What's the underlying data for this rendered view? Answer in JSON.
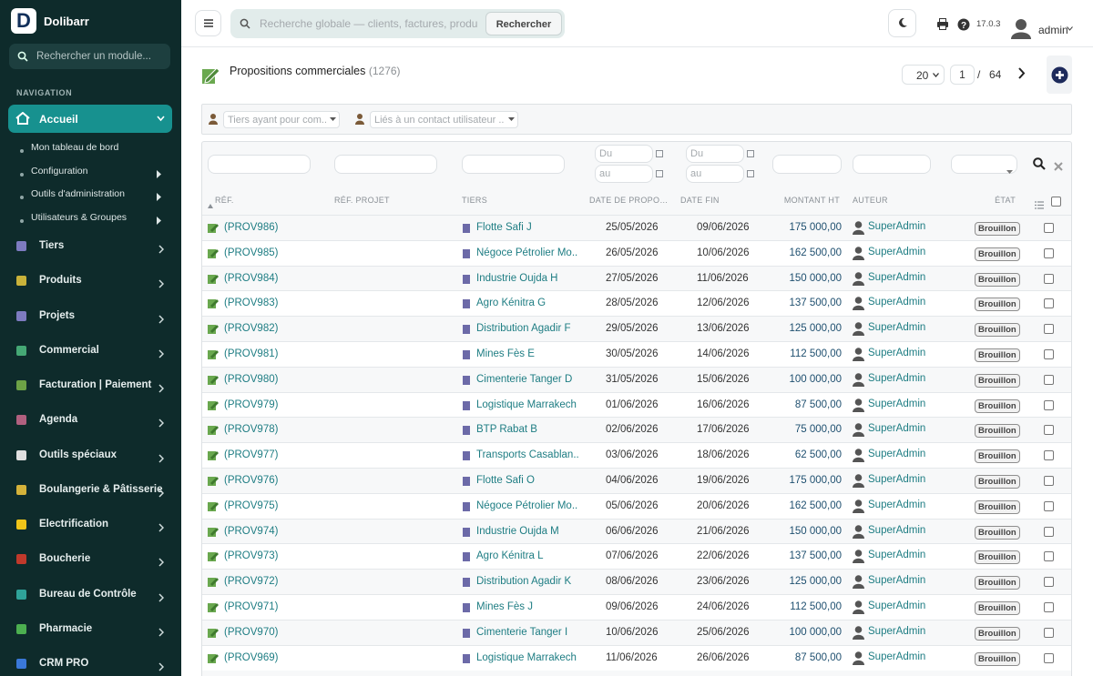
{
  "sidebar": {
    "brand": "Dolibarr",
    "search_placeholder": "Rechercher un module...",
    "section": "NAVIGATION",
    "active": "Accueil",
    "submenu": [
      "Mon tableau de bord",
      "Configuration",
      "Outils d'administration",
      "Utilisateurs & Groupes"
    ],
    "menu": [
      "Tiers",
      "Produits",
      "Projets",
      "Commercial",
      "Facturation | Paiement",
      "Agenda",
      "Outils spéciaux",
      "Boulangerie & Pâtisserie",
      "Electrification",
      "Boucherie",
      "Bureau de Contrôle",
      "Pharmacie",
      "CRM PRO"
    ]
  },
  "topbar": {
    "search_placeholder": "Recherche globale — clients, factures, produits...",
    "search_button": "Rechercher",
    "version": "17.0.3",
    "user": "admin"
  },
  "page": {
    "title": "Propositions commerciales",
    "count": "(1276)",
    "per_page": "20",
    "current_page": "1",
    "separator": "/",
    "pages": "64"
  },
  "filters": {
    "thirdparty_placeholder": "Tiers ayant pour com...",
    "contact_placeholder": "Liés à un contact utilisateur ...",
    "date_from": "Du",
    "date_to": "au"
  },
  "table": {
    "headers": [
      "RÉF.",
      "RÉF. PROJET",
      "TIERS",
      "DATE DE PROPOSI...",
      "DATE FIN",
      "MONTANT HT",
      "AUTEUR",
      "ÉTAT"
    ],
    "rows": [
      {
        "ref": "(PROV986)",
        "thirdparty": "Flotte Safi J",
        "date": "25/05/2026",
        "end_date": "09/06/2026",
        "amount": "175 000,00",
        "author": "SuperAdmin",
        "status": "Brouillon"
      },
      {
        "ref": "(PROV985)",
        "thirdparty": "Négoce Pétrolier Mo...",
        "date": "26/05/2026",
        "end_date": "10/06/2026",
        "amount": "162 500,00",
        "author": "SuperAdmin",
        "status": "Brouillon"
      },
      {
        "ref": "(PROV984)",
        "thirdparty": "Industrie Oujda H",
        "date": "27/05/2026",
        "end_date": "11/06/2026",
        "amount": "150 000,00",
        "author": "SuperAdmin",
        "status": "Brouillon"
      },
      {
        "ref": "(PROV983)",
        "thirdparty": "Agro Kénitra G",
        "date": "28/05/2026",
        "end_date": "12/06/2026",
        "amount": "137 500,00",
        "author": "SuperAdmin",
        "status": "Brouillon"
      },
      {
        "ref": "(PROV982)",
        "thirdparty": "Distribution Agadir F",
        "date": "29/05/2026",
        "end_date": "13/06/2026",
        "amount": "125 000,00",
        "author": "SuperAdmin",
        "status": "Brouillon"
      },
      {
        "ref": "(PROV981)",
        "thirdparty": "Mines Fès E",
        "date": "30/05/2026",
        "end_date": "14/06/2026",
        "amount": "112 500,00",
        "author": "SuperAdmin",
        "status": "Brouillon"
      },
      {
        "ref": "(PROV980)",
        "thirdparty": "Cimenterie Tanger D",
        "date": "31/05/2026",
        "end_date": "15/06/2026",
        "amount": "100 000,00",
        "author": "SuperAdmin",
        "status": "Brouillon"
      },
      {
        "ref": "(PROV979)",
        "thirdparty": "Logistique Marrakech C",
        "date": "01/06/2026",
        "end_date": "16/06/2026",
        "amount": "87 500,00",
        "author": "SuperAdmin",
        "status": "Brouillon"
      },
      {
        "ref": "(PROV978)",
        "thirdparty": "BTP Rabat B",
        "date": "02/06/2026",
        "end_date": "17/06/2026",
        "amount": "75 000,00",
        "author": "SuperAdmin",
        "status": "Brouillon"
      },
      {
        "ref": "(PROV977)",
        "thirdparty": "Transports Casablan...",
        "date": "03/06/2026",
        "end_date": "18/06/2026",
        "amount": "62 500,00",
        "author": "SuperAdmin",
        "status": "Brouillon"
      },
      {
        "ref": "(PROV976)",
        "thirdparty": "Flotte Safi O",
        "date": "04/06/2026",
        "end_date": "19/06/2026",
        "amount": "175 000,00",
        "author": "SuperAdmin",
        "status": "Brouillon"
      },
      {
        "ref": "(PROV975)",
        "thirdparty": "Négoce Pétrolier Mo...",
        "date": "05/06/2026",
        "end_date": "20/06/2026",
        "amount": "162 500,00",
        "author": "SuperAdmin",
        "status": "Brouillon"
      },
      {
        "ref": "(PROV974)",
        "thirdparty": "Industrie Oujda M",
        "date": "06/06/2026",
        "end_date": "21/06/2026",
        "amount": "150 000,00",
        "author": "SuperAdmin",
        "status": "Brouillon"
      },
      {
        "ref": "(PROV973)",
        "thirdparty": "Agro Kénitra L",
        "date": "07/06/2026",
        "end_date": "22/06/2026",
        "amount": "137 500,00",
        "author": "SuperAdmin",
        "status": "Brouillon"
      },
      {
        "ref": "(PROV972)",
        "thirdparty": "Distribution Agadir K",
        "date": "08/06/2026",
        "end_date": "23/06/2026",
        "amount": "125 000,00",
        "author": "SuperAdmin",
        "status": "Brouillon"
      },
      {
        "ref": "(PROV971)",
        "thirdparty": "Mines Fès J",
        "date": "09/06/2026",
        "end_date": "24/06/2026",
        "amount": "112 500,00",
        "author": "SuperAdmin",
        "status": "Brouillon"
      },
      {
        "ref": "(PROV970)",
        "thirdparty": "Cimenterie Tanger I",
        "date": "10/06/2026",
        "end_date": "25/06/2026",
        "amount": "100 000,00",
        "author": "SuperAdmin",
        "status": "Brouillon"
      },
      {
        "ref": "(PROV969)",
        "thirdparty": "Logistique Marrakech H",
        "date": "11/06/2026",
        "end_date": "26/06/2026",
        "amount": "87 500,00",
        "author": "SuperAdmin",
        "status": "Brouillon"
      }
    ]
  }
}
